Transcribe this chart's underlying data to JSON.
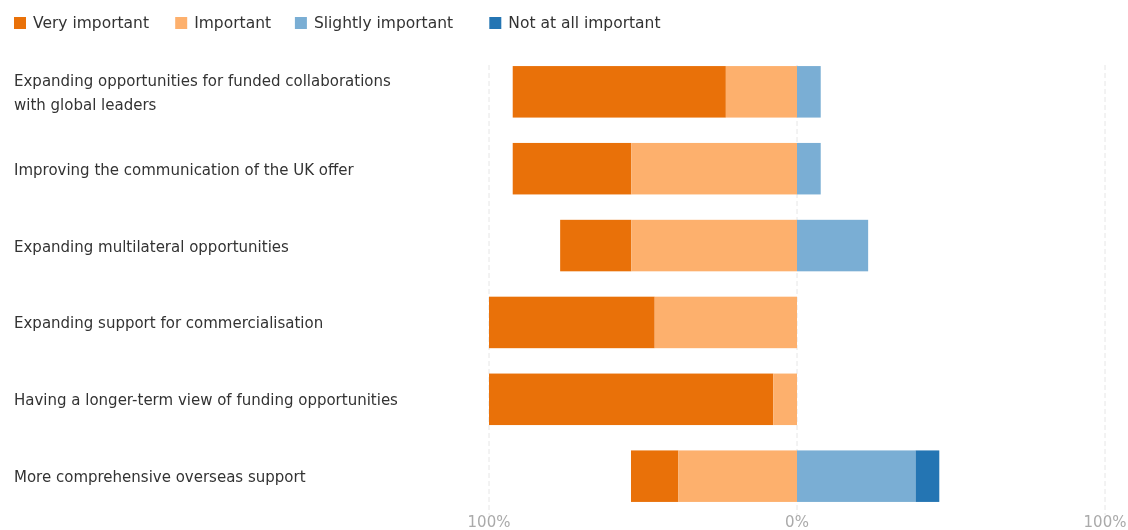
{
  "chart_data": {
    "type": "bar",
    "orientation": "horizontal",
    "categories": [
      "Expanding opportunities for funded collaborations with global leaders",
      "Improving the communication of the UK offer",
      "Expanding multilateral opportunities",
      "Expanding support for commercialisation",
      "Having a longer-term view of funding opportunities",
      "More comprehensive overseas support"
    ],
    "series": [
      {
        "name": "Very important",
        "color": "#e97109",
        "values": [
          -69.2,
          -38.5,
          -23.1,
          -53.8,
          -92.3,
          -15.4
        ],
        "base": [
          -23.1,
          -53.8,
          -53.8,
          -46.2,
          -7.7,
          -38.5
        ]
      },
      {
        "name": "Important",
        "color": "#fdb06d",
        "values": [
          -23.1,
          -53.8,
          -53.8,
          -46.2,
          -7.7,
          -38.5
        ],
        "base": [
          0,
          0,
          0,
          0,
          0,
          0
        ]
      },
      {
        "name": "Slightly important",
        "color": "#7aaed4",
        "values": [
          7.7,
          7.7,
          23.1,
          null,
          null,
          38.5
        ],
        "base": [
          0,
          0,
          0,
          null,
          null,
          0
        ]
      },
      {
        "name": "Not at all important",
        "color": "#2475b3",
        "values": [
          null,
          null,
          null,
          null,
          null,
          7.7
        ],
        "base": [
          null,
          null,
          null,
          null,
          null,
          38.5
        ]
      }
    ],
    "xlim": [
      -100,
      100
    ],
    "xticks": [
      {
        "value": -100,
        "label": "100%"
      },
      {
        "value": 0,
        "label": "0%"
      },
      {
        "value": 100,
        "label": "100%"
      }
    ],
    "grid": "x",
    "legend": "top left"
  }
}
